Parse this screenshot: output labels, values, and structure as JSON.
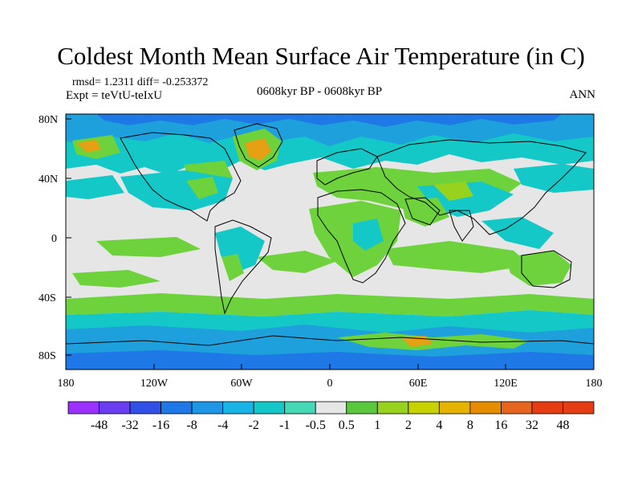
{
  "title": "Coldest Month Mean Surface Air Temperature (in C)",
  "stats": {
    "rmsd_line": "rmsd= 1.2311 diff= -0.253372",
    "expt_line": "Expt = teVtU-teIxU",
    "period": "0608kyr BP - 0608kyr BP",
    "season": "ANN"
  },
  "axes": {
    "y_ticks": [
      "80N",
      "40N",
      "0",
      "40S",
      "80S"
    ],
    "x_ticks": [
      "180",
      "120W",
      "60W",
      "0",
      "60E",
      "120E",
      "180"
    ]
  },
  "colorbar": {
    "labels": [
      "-48",
      "-32",
      "-16",
      "-8",
      "-4",
      "-2",
      "-1",
      "-0.5",
      "0.5",
      "1",
      "2",
      "4",
      "8",
      "16",
      "32",
      "48"
    ],
    "colors": [
      "#9b30ff",
      "#6a3df0",
      "#3050e8",
      "#1e78e6",
      "#1e96e6",
      "#19b4e6",
      "#14c8c8",
      "#46d8b4",
      "#e6e6e6",
      "#5ac83c",
      "#96d21e",
      "#c8d200",
      "#e6b400",
      "#e68c00",
      "#e6641e",
      "#e63c14"
    ]
  },
  "colors": {
    "neutral": "#e6e6e6",
    "warm": "#6ed23c",
    "cool_light": "#14c8c8",
    "cool": "#1ea0dc",
    "cool_deep": "#1e78e6",
    "hot": "#e6a014"
  }
}
